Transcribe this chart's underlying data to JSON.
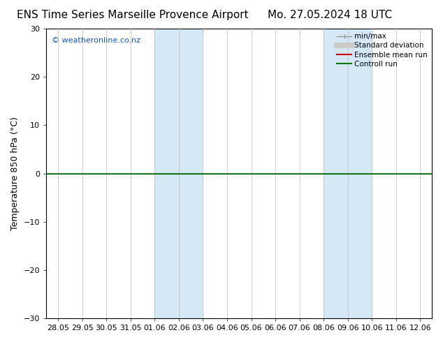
{
  "title_left": "ENS Time Series Marseille Provence Airport",
  "title_right": "Mo. 27.05.2024 18 UTC",
  "ylabel": "Temperature 850 hPa (°C)",
  "copyright": "© weatheronline.co.nz",
  "ylim": [
    -30,
    30
  ],
  "yticks": [
    -30,
    -20,
    -10,
    0,
    10,
    20,
    30
  ],
  "xtick_labels": [
    "28.05",
    "29.05",
    "30.05",
    "31.05",
    "01.06",
    "02.06",
    "03.06",
    "04.06",
    "05.06",
    "06.06",
    "07.06",
    "08.06",
    "09.06",
    "10.06",
    "11.06",
    "12.06"
  ],
  "shaded_bands": [
    {
      "xstart": 4,
      "xend": 6
    },
    {
      "xstart": 11,
      "xend": 13
    }
  ],
  "shaded_color": "#d4e8f5",
  "zero_line_color": "#000000",
  "green_line_color": "#007700",
  "legend_items": [
    {
      "label": "min/max",
      "color": "#aaaaaa",
      "lw": 1.0,
      "style": "minmax"
    },
    {
      "label": "Standard deviation",
      "color": "#cccccc",
      "lw": 6,
      "style": "thick"
    },
    {
      "label": "Ensemble mean run",
      "color": "#cc0000",
      "lw": 1.5,
      "style": "line"
    },
    {
      "label": "Controll run",
      "color": "#007700",
      "lw": 1.5,
      "style": "line"
    }
  ],
  "background_color": "#ffffff",
  "tick_fontsize": 8,
  "ylabel_fontsize": 9,
  "title_fontsize": 11
}
